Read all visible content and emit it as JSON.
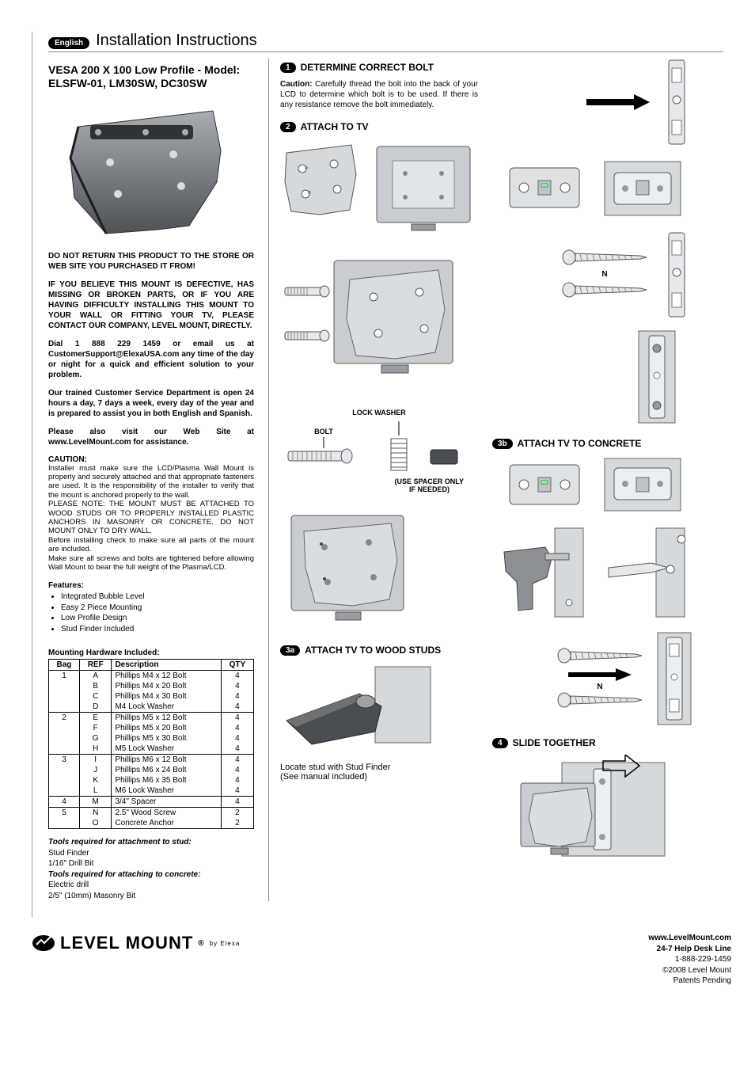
{
  "header": {
    "lang": "English",
    "title": "Installation Instructions"
  },
  "model": {
    "line1": "VESA 200 X 100 Low Profile - Model:",
    "line2": "ELSFW-01, LM30SW, DC30SW"
  },
  "warn1": "DO NOT RETURN THIS PRODUCT TO THE STORE OR WEB SITE YOU PURCHASED IT FROM!",
  "warn2": "IF YOU BELIEVE THIS MOUNT IS DEFECTIVE, HAS MISSING OR BROKEN PARTS, OR IF YOU ARE HAVING DIFFICULTY INSTALLING THIS MOUNT TO YOUR WALL OR FITTING YOUR TV, PLEASE CONTACT OUR COMPANY, LEVEL MOUNT, DIRECTLY.",
  "dial": "Dial 1 888 229 1459 or email us at CustomerSupport@ElexaUSA.com any time of the day or night for a quick and efficient solution to your problem.",
  "csdept": "Our trained Customer Service Department is open 24 hours a day, 7 days a week, every day of the year and is prepared to assist you in both English and Spanish.",
  "visit": "Please also visit our Web Site at www.LevelMount.com for assistance.",
  "caution": {
    "hd": "CAUTION:",
    "body": "Installer must make sure the LCD/Plasma Wall Mount is properly and securely attached and that appropriate fasteners are used. It is the responsibility of the installer to verify that the mount is anchored properly to the wall.\nPLEASE NOTE: THE MOUNT MUST BE ATTACHED TO WOOD STUDS OR TO PROPERLY INSTALLED PLASTIC ANCHORS IN MASONRY OR CONCRETE. DO NOT MOUNT ONLY TO DRY WALL.\nBefore installing check to make sure all parts of the mount are included.\nMake sure all screws and bolts are tightened before allowing Wall Mount to bear the full weight of the Plasma/LCD."
  },
  "features": {
    "hd": "Features:",
    "items": [
      "Integrated Bubble Level",
      "Easy 2 Piece Mounting",
      "Low Profile Design",
      "Stud Finder Included"
    ]
  },
  "hw": {
    "hd": "Mounting Hardware Included:",
    "cols": [
      "Bag",
      "REF",
      "Description",
      "QTY"
    ],
    "rows": [
      [
        "1",
        "A",
        "Phillips M4 x 12 Bolt",
        "4"
      ],
      [
        "",
        "B",
        "Phillips M4 x 20 Bolt",
        "4"
      ],
      [
        "",
        "C",
        "Phillips M4 x 30 Bolt",
        "4"
      ],
      [
        "",
        "D",
        "M4 Lock Washer",
        "4"
      ],
      [
        "2",
        "E",
        "Phillips M5 x 12 Bolt",
        "4"
      ],
      [
        "",
        "F",
        "Phillips M5 x 20 Bolt",
        "4"
      ],
      [
        "",
        "G",
        "Phillips M5 x 30 Bolt",
        "4"
      ],
      [
        "",
        "H",
        "M5 Lock Washer",
        "4"
      ],
      [
        "3",
        "I",
        "Phillips M6 x 12 Bolt",
        "4"
      ],
      [
        "",
        "J",
        "Phillips M6 x 24 Bolt",
        "4"
      ],
      [
        "",
        "K",
        "Phillips M6 x 35 Bolt",
        "4"
      ],
      [
        "",
        "L",
        "M6 Lock Washer",
        "4"
      ],
      [
        "4",
        "M",
        "3/4\" Spacer",
        "4"
      ],
      [
        "5",
        "N",
        "2.5\" Wood Screw",
        "2"
      ],
      [
        "",
        "O",
        "Concrete Anchor",
        "2"
      ]
    ]
  },
  "tools": {
    "hd1": "Tools required for attachment to stud:",
    "l1": "Stud Finder",
    "l2": "1/16\" Drill Bit",
    "hd2": "Tools required for attaching to concrete:",
    "l3": "Electric drill",
    "l4": "2/5\" (10mm) Masonry Bit"
  },
  "steps": {
    "s1": {
      "num": "1",
      "title": "DETERMINE CORRECT BOLT",
      "text_pre": "Caution:",
      "text": " Carefully thread the bolt into the back of your LCD to determine which bolt is to be used. If there is any resistance remove the bolt immediately."
    },
    "s2": {
      "num": "2",
      "title": "ATTACH TO TV",
      "lock": "LOCK WASHER",
      "bolt": "BOLT",
      "spacer1": "(USE SPACER ONLY",
      "spacer2": "IF NEEDED)"
    },
    "s3a": {
      "num": "3a",
      "title": "ATTACH TV TO WOOD STUDS",
      "note1": "Locate stud with Stud Finder",
      "note2": "(See manual included)"
    },
    "s3b": {
      "num": "3b",
      "title": "ATTACH TV TO CONCRETE"
    },
    "s4": {
      "num": "4",
      "title": "SLIDE TOGETHER"
    },
    "n_label": "N"
  },
  "brand": {
    "name": "LEVEL MOUNT",
    "reg": "®",
    "sub": "by Elexa"
  },
  "footer": {
    "url": "www.LevelMount.com",
    "help": "24-7 Help Desk Line",
    "phone": "1-888-229-1459",
    "copy": "©2008 Level Mount",
    "pat": "Patents Pending"
  },
  "colors": {
    "black": "#000000",
    "grey_border": "#888888",
    "svg_fill": "#bfc3c7",
    "svg_dark": "#6f7478",
    "svg_stroke": "#3a3e42"
  }
}
